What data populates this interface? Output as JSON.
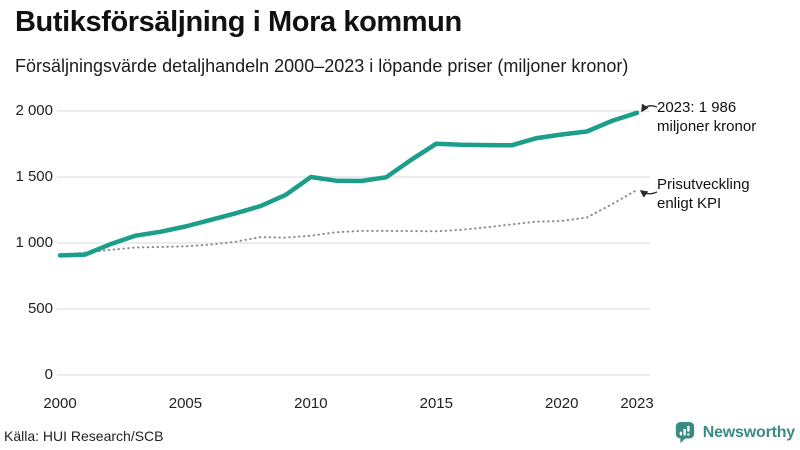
{
  "header": {
    "title": "Butiksförsäljning i Mora kommun",
    "subtitle": "Försäljningsvärde detaljhandeln 2000–2023 i löpande priser (miljoner kronor)"
  },
  "chart_data": {
    "type": "line",
    "title": "Butiksförsäljning i Mora kommun",
    "subtitle": "Försäljningsvärde detaljhandeln 2000–2023 i löpande priser (miljoner kronor)",
    "x": [
      2000,
      2001,
      2002,
      2003,
      2004,
      2005,
      2006,
      2007,
      2008,
      2009,
      2010,
      2011,
      2012,
      2013,
      2014,
      2015,
      2016,
      2017,
      2018,
      2019,
      2020,
      2021,
      2022,
      2023
    ],
    "series": [
      {
        "name": "Försäljningsvärde detaljhandeln i löpande priser",
        "color": "#1b9e8a",
        "style": "solid",
        "values": [
          906,
          912,
          990,
          1055,
          1085,
          1125,
          1175,
          1225,
          1280,
          1365,
          1500,
          1472,
          1470,
          1498,
          1630,
          1752,
          1745,
          1742,
          1740,
          1795,
          1822,
          1845,
          1925,
          1986
        ]
      },
      {
        "name": "Prisutveckling enligt KPI",
        "color": "#8a8a8a",
        "style": "dotted",
        "values": [
          906,
          928,
          948,
          966,
          970,
          975,
          988,
          1010,
          1045,
          1041,
          1055,
          1082,
          1092,
          1092,
          1090,
          1089,
          1100,
          1119,
          1141,
          1162,
          1167,
          1193,
          1293,
          1402
        ]
      }
    ],
    "ylim": [
      0,
      2000
    ],
    "xlim": [
      2000,
      2023
    ],
    "yticks": {
      "values": [
        0,
        500,
        1000,
        1500,
        2000
      ],
      "labels": [
        "0",
        "500",
        "1 000",
        "1 500",
        "2 000"
      ]
    },
    "xticks": {
      "values": [
        2000,
        2005,
        2010,
        2015,
        2020,
        2023
      ],
      "labels": [
        "2000",
        "2005",
        "2010",
        "2015",
        "2020",
        "2023"
      ]
    },
    "grid": "horizontal",
    "legend_position": "right-annotations",
    "annotations": [
      {
        "target_year": 2023,
        "target_value": 1986,
        "text": "2023: 1 986 miljoner kronor"
      },
      {
        "target_year": 2023,
        "target_value": 1402,
        "text": "Prisutveckling enligt KPI"
      }
    ]
  },
  "annotations": {
    "latest": {
      "line1": "2023: 1 986",
      "line2": "miljoner kronor"
    },
    "kpi": {
      "line1": "Prisutveckling",
      "line2": "enligt KPI"
    }
  },
  "footer": {
    "source": "Källa: HUI Research/SCB",
    "brand": "Newsworthy"
  },
  "colors": {
    "line": "#1b9e8a",
    "kpi_dotted": "#8a8a8a",
    "grid": "#e0e1e8",
    "brand": "#3a8b82"
  }
}
